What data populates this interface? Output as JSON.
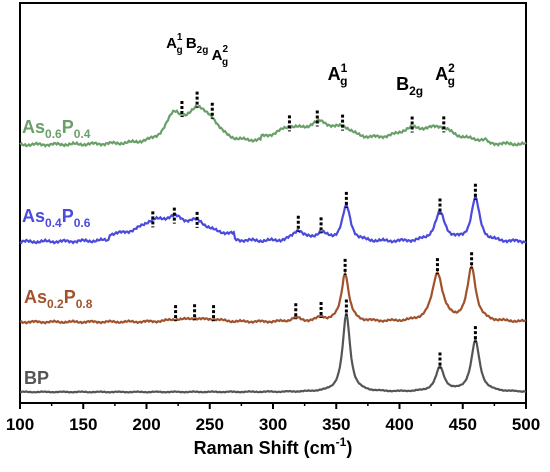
{
  "chart_data": {
    "type": "line",
    "title": "",
    "xlabel": "Raman Shift (cm",
    "xlabel_sup": "-1",
    "xlabel_close": ")",
    "ylabel": "",
    "xlim": [
      100,
      500
    ],
    "xticks": [
      100,
      150,
      200,
      250,
      300,
      350,
      400,
      450,
      500
    ],
    "grid": false,
    "legend": "inline-left",
    "series": [
      {
        "base": "BP",
        "element1": "",
        "sub1": "",
        "element2": "",
        "sub2": "",
        "color": "#555555",
        "offset": 0,
        "baseline": 0.0,
        "peaks": [
          [
            358,
            5.8,
            3.5
          ],
          [
            432,
            1.8,
            4
          ],
          [
            460,
            3.8,
            4
          ]
        ],
        "markers": [
          358,
          432,
          460
        ]
      },
      {
        "base": "",
        "element1": "As",
        "sub1": "0.2",
        "element2": "P",
        "sub2": "0.8",
        "color": "#a0522d",
        "offset": 1,
        "baseline": 0.0,
        "peaks": [
          [
            223,
            0.15,
            8
          ],
          [
            238,
            0.2,
            8
          ],
          [
            253,
            0.15,
            8
          ],
          [
            318,
            0.3,
            4
          ],
          [
            338,
            0.3,
            4
          ],
          [
            357,
            3.6,
            3.5
          ],
          [
            430,
            3.6,
            5
          ],
          [
            457,
            4.0,
            4
          ]
        ],
        "markers": [
          223,
          238,
          253,
          318,
          338,
          357,
          430,
          457
        ]
      },
      {
        "base": "",
        "element1": "As",
        "sub1": "0.4",
        "element2": "P",
        "sub2": "0.6",
        "color": "#4a4adc",
        "offset": 2,
        "baseline": 0.0,
        "peaks": [
          [
            205,
            0.9,
            12
          ],
          [
            222,
            1.0,
            10
          ],
          [
            240,
            0.85,
            10
          ],
          [
            320,
            0.8,
            5
          ],
          [
            338,
            0.6,
            5
          ],
          [
            358,
            2.6,
            4
          ],
          [
            432,
            2.1,
            5
          ],
          [
            460,
            3.2,
            4
          ]
        ],
        "markers": [
          205,
          222,
          240,
          320,
          338,
          358,
          432,
          460
        ]
      },
      {
        "base": "",
        "element1": "As",
        "sub1": "0.6",
        "element2": "P",
        "sub2": "0.4",
        "color": "#6a9f6a",
        "offset": 3,
        "baseline": 0.0,
        "peaks": [
          [
            222,
            2.0,
            8
          ],
          [
            240,
            2.2,
            9
          ],
          [
            252,
            1.1,
            8
          ],
          [
            313,
            0.8,
            12
          ],
          [
            337,
            1.2,
            12
          ],
          [
            356,
            0.7,
            8
          ],
          [
            410,
            0.8,
            14
          ],
          [
            432,
            0.9,
            12
          ]
        ],
        "markers": [
          228,
          240,
          252,
          313,
          335,
          355,
          410,
          435
        ]
      }
    ],
    "peak_labels": [
      {
        "main": "A",
        "sub": "g",
        "sup": "1",
        "x": 222,
        "row": "top",
        "size": "small"
      },
      {
        "main": "B",
        "sub": "2g",
        "sup": "",
        "x": 240,
        "row": "top",
        "size": "small"
      },
      {
        "main": "A",
        "sub": "g",
        "sup": "2",
        "x": 258,
        "row": "mid",
        "size": "small"
      },
      {
        "main": "A",
        "sub": "g",
        "sup": "1",
        "x": 351,
        "row": "large",
        "size": "large"
      },
      {
        "main": "B",
        "sub": "2g",
        "sup": "",
        "x": 408,
        "row": "large2",
        "size": "large"
      },
      {
        "main": "A",
        "sub": "g",
        "sup": "2",
        "x": 436,
        "row": "large",
        "size": "large"
      }
    ]
  }
}
